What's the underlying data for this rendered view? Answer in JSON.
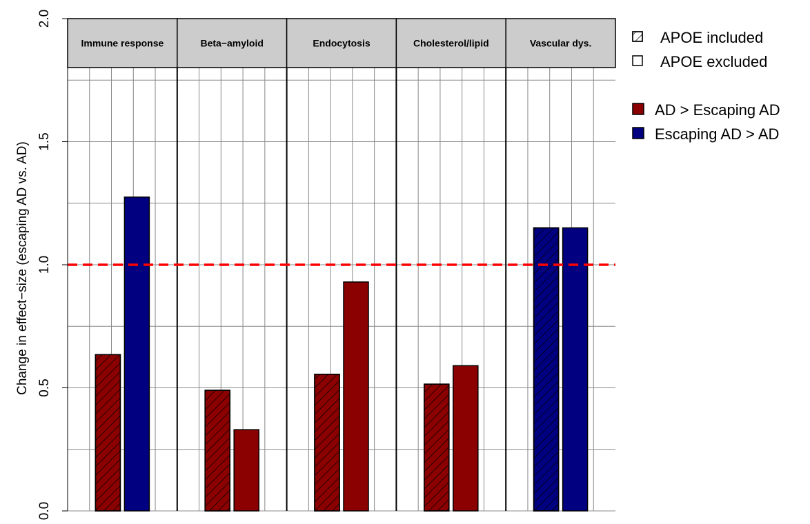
{
  "chart_data": {
    "type": "bar",
    "ylabel": "Change in effect−size (escaping AD vs. AD)",
    "ylim": [
      0,
      2
    ],
    "yticks": [
      "0.0",
      "0.5",
      "1.0",
      "1.5",
      "2.0"
    ],
    "reference_line": 1.0,
    "reference_line_color": "#ff0000",
    "panels": [
      {
        "label": "Immune response",
        "bars": [
          {
            "condition": "APOE included",
            "value": 0.635,
            "direction": "AD > Escaping AD"
          },
          {
            "condition": "APOE excluded",
            "value": 1.275,
            "direction": "Escaping AD > AD"
          }
        ]
      },
      {
        "label": "Beta−amyloid",
        "bars": [
          {
            "condition": "APOE included",
            "value": 0.49,
            "direction": "AD > Escaping AD"
          },
          {
            "condition": "APOE excluded",
            "value": 0.33,
            "direction": "AD > Escaping AD"
          }
        ]
      },
      {
        "label": "Endocytosis",
        "bars": [
          {
            "condition": "APOE included",
            "value": 0.555,
            "direction": "AD > Escaping AD"
          },
          {
            "condition": "APOE excluded",
            "value": 0.93,
            "direction": "AD > Escaping AD"
          }
        ]
      },
      {
        "label": "Cholesterol/lipid",
        "bars": [
          {
            "condition": "APOE included",
            "value": 0.515,
            "direction": "AD > Escaping AD"
          },
          {
            "condition": "APOE excluded",
            "value": 0.59,
            "direction": "AD > Escaping AD"
          }
        ]
      },
      {
        "label": "Vascular dys.",
        "bars": [
          {
            "condition": "APOE included",
            "value": 1.15,
            "direction": "Escaping AD > AD"
          },
          {
            "condition": "APOE excluded",
            "value": 1.15,
            "direction": "Escaping AD > AD"
          }
        ]
      }
    ],
    "legend": {
      "pattern": [
        {
          "label": "APOE included",
          "style": "hatched"
        },
        {
          "label": "APOE excluded",
          "style": "solid"
        }
      ],
      "color": [
        {
          "label": "AD > Escaping AD",
          "color": "#8b0000"
        },
        {
          "label": "Escaping AD > AD",
          "color": "#000080"
        }
      ],
      "placement": "right"
    },
    "grid": true,
    "strip_color": "#cccccc"
  }
}
